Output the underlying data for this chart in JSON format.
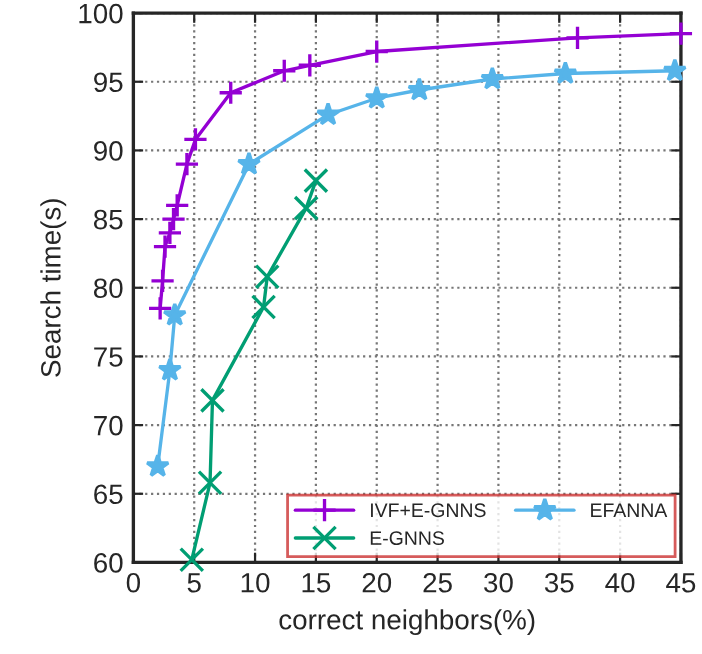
{
  "chart_data": {
    "type": "line",
    "xlabel": "correct neighbors(%)",
    "ylabel": "Search time(s)",
    "series": [
      {
        "name": "IVF+E-GNNS",
        "color": "#9400d3",
        "marker": "plus",
        "x": [
          2.2,
          2.4,
          2.6,
          3.0,
          3.3,
          3.6,
          4.4,
          5.1,
          8.0,
          12.4,
          14.5,
          20,
          36.5,
          45
        ],
        "values": [
          78.5,
          80.5,
          83,
          84,
          85,
          86,
          89,
          90.8,
          94.2,
          95.8,
          96.2,
          97.2,
          98.2,
          98.5
        ]
      },
      {
        "name": "E-GNNS",
        "color": "#009e73",
        "marker": "cross",
        "x": [
          4.8,
          6.3,
          6.5,
          10.7,
          11,
          14.2,
          15
        ],
        "values": [
          60.2,
          65.8,
          71.8,
          78.6,
          80.8,
          85.8,
          87.8
        ]
      },
      {
        "name": "EFANNA",
        "color": "#56b4e9",
        "marker": "star",
        "x": [
          2,
          3,
          3.4,
          9.5,
          16,
          20,
          23.5,
          29.5,
          35.5,
          44.5
        ],
        "values": [
          67,
          74,
          78,
          89,
          92.6,
          93.8,
          94.4,
          95.2,
          95.6,
          95.8
        ]
      }
    ],
    "xlim": [
      0,
      45
    ],
    "xticks": [
      0,
      5,
      10,
      15,
      20,
      25,
      30,
      35,
      40,
      45
    ],
    "ylim": [
      60,
      100
    ],
    "yticks": [
      60,
      65,
      70,
      75,
      80,
      85,
      90,
      95,
      100
    ],
    "grid": true,
    "legend": "bottom right"
  }
}
